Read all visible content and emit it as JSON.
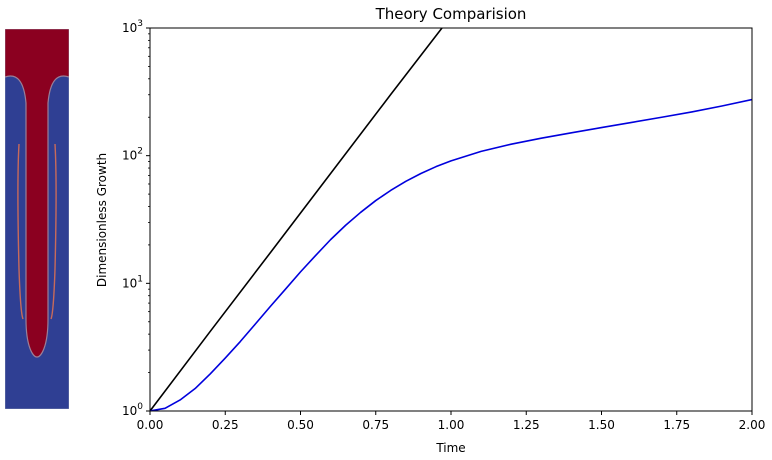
{
  "simulation_panel": {
    "colors": {
      "heavy": "#8b0020",
      "light": "#2f3f93"
    }
  },
  "chart_data": {
    "type": "line",
    "title": "Theory Comparision",
    "xlabel": "Time",
    "ylabel": "Dimensionless Growth",
    "xlim": [
      0.0,
      2.0
    ],
    "ylim": [
      1,
      1000
    ],
    "yscale": "log",
    "grid": false,
    "x_ticks": [
      "0.00",
      "0.25",
      "0.50",
      "0.75",
      "1.00",
      "1.25",
      "1.50",
      "1.75",
      "2.00"
    ],
    "y_ticks": [
      {
        "base": "10",
        "exp": "0",
        "value": 1
      },
      {
        "base": "10",
        "exp": "1",
        "value": 10
      },
      {
        "base": "10",
        "exp": "2",
        "value": 100
      },
      {
        "base": "10",
        "exp": "3",
        "value": 1000
      }
    ],
    "series": [
      {
        "color": "#000000",
        "x": [
          0.0,
          0.2,
          0.4,
          0.6,
          0.8,
          0.97
        ],
        "y": [
          1.0,
          4.2,
          17.4,
          72.5,
          302,
          1000
        ]
      },
      {
        "color": "#0000dd",
        "x": [
          0.0,
          0.05,
          0.1,
          0.15,
          0.2,
          0.25,
          0.3,
          0.35,
          0.4,
          0.45,
          0.5,
          0.55,
          0.6,
          0.65,
          0.7,
          0.75,
          0.8,
          0.85,
          0.9,
          0.95,
          1.0,
          1.1,
          1.2,
          1.3,
          1.4,
          1.5,
          1.6,
          1.7,
          1.8,
          1.9,
          2.0
        ],
        "y": [
          1.0,
          1.05,
          1.22,
          1.5,
          1.95,
          2.6,
          3.5,
          4.8,
          6.6,
          9.0,
          12.3,
          16.5,
          22.0,
          28.5,
          36.0,
          44.5,
          53.5,
          63.0,
          72.5,
          82.0,
          91.0,
          108,
          123,
          137,
          151,
          166,
          182,
          200,
          220,
          245,
          275
        ]
      }
    ]
  }
}
